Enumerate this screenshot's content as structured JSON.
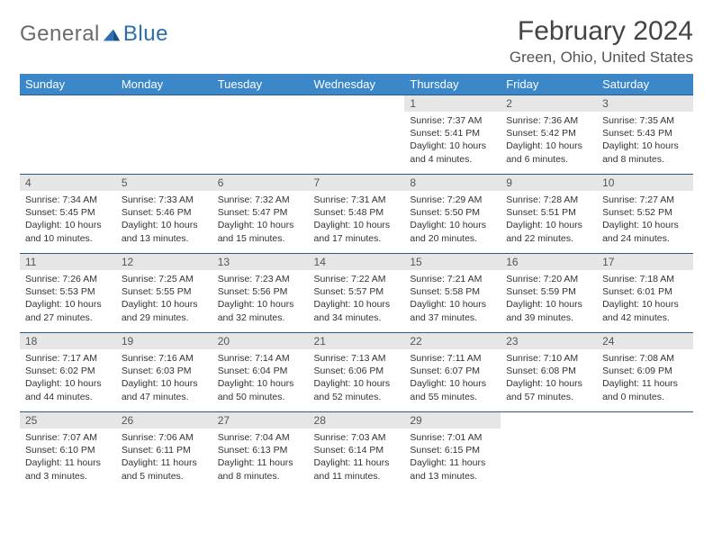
{
  "logo": {
    "general": "General",
    "blue": "Blue"
  },
  "title": "February 2024",
  "location": "Green, Ohio, United States",
  "colors": {
    "header_bg": "#3b87c8",
    "header_text": "#ffffff",
    "daynum_bg": "#e6e6e6",
    "border": "#2b5a88",
    "logo_gray": "#6b6b6b",
    "logo_blue": "#2b6fb3"
  },
  "weekdays": [
    "Sunday",
    "Monday",
    "Tuesday",
    "Wednesday",
    "Thursday",
    "Friday",
    "Saturday"
  ],
  "weeks": [
    [
      null,
      null,
      null,
      null,
      {
        "d": "1",
        "sr": "Sunrise: 7:37 AM",
        "ss": "Sunset: 5:41 PM",
        "dl": "Daylight: 10 hours and 4 minutes."
      },
      {
        "d": "2",
        "sr": "Sunrise: 7:36 AM",
        "ss": "Sunset: 5:42 PM",
        "dl": "Daylight: 10 hours and 6 minutes."
      },
      {
        "d": "3",
        "sr": "Sunrise: 7:35 AM",
        "ss": "Sunset: 5:43 PM",
        "dl": "Daylight: 10 hours and 8 minutes."
      }
    ],
    [
      {
        "d": "4",
        "sr": "Sunrise: 7:34 AM",
        "ss": "Sunset: 5:45 PM",
        "dl": "Daylight: 10 hours and 10 minutes."
      },
      {
        "d": "5",
        "sr": "Sunrise: 7:33 AM",
        "ss": "Sunset: 5:46 PM",
        "dl": "Daylight: 10 hours and 13 minutes."
      },
      {
        "d": "6",
        "sr": "Sunrise: 7:32 AM",
        "ss": "Sunset: 5:47 PM",
        "dl": "Daylight: 10 hours and 15 minutes."
      },
      {
        "d": "7",
        "sr": "Sunrise: 7:31 AM",
        "ss": "Sunset: 5:48 PM",
        "dl": "Daylight: 10 hours and 17 minutes."
      },
      {
        "d": "8",
        "sr": "Sunrise: 7:29 AM",
        "ss": "Sunset: 5:50 PM",
        "dl": "Daylight: 10 hours and 20 minutes."
      },
      {
        "d": "9",
        "sr": "Sunrise: 7:28 AM",
        "ss": "Sunset: 5:51 PM",
        "dl": "Daylight: 10 hours and 22 minutes."
      },
      {
        "d": "10",
        "sr": "Sunrise: 7:27 AM",
        "ss": "Sunset: 5:52 PM",
        "dl": "Daylight: 10 hours and 24 minutes."
      }
    ],
    [
      {
        "d": "11",
        "sr": "Sunrise: 7:26 AM",
        "ss": "Sunset: 5:53 PM",
        "dl": "Daylight: 10 hours and 27 minutes."
      },
      {
        "d": "12",
        "sr": "Sunrise: 7:25 AM",
        "ss": "Sunset: 5:55 PM",
        "dl": "Daylight: 10 hours and 29 minutes."
      },
      {
        "d": "13",
        "sr": "Sunrise: 7:23 AM",
        "ss": "Sunset: 5:56 PM",
        "dl": "Daylight: 10 hours and 32 minutes."
      },
      {
        "d": "14",
        "sr": "Sunrise: 7:22 AM",
        "ss": "Sunset: 5:57 PM",
        "dl": "Daylight: 10 hours and 34 minutes."
      },
      {
        "d": "15",
        "sr": "Sunrise: 7:21 AM",
        "ss": "Sunset: 5:58 PM",
        "dl": "Daylight: 10 hours and 37 minutes."
      },
      {
        "d": "16",
        "sr": "Sunrise: 7:20 AM",
        "ss": "Sunset: 5:59 PM",
        "dl": "Daylight: 10 hours and 39 minutes."
      },
      {
        "d": "17",
        "sr": "Sunrise: 7:18 AM",
        "ss": "Sunset: 6:01 PM",
        "dl": "Daylight: 10 hours and 42 minutes."
      }
    ],
    [
      {
        "d": "18",
        "sr": "Sunrise: 7:17 AM",
        "ss": "Sunset: 6:02 PM",
        "dl": "Daylight: 10 hours and 44 minutes."
      },
      {
        "d": "19",
        "sr": "Sunrise: 7:16 AM",
        "ss": "Sunset: 6:03 PM",
        "dl": "Daylight: 10 hours and 47 minutes."
      },
      {
        "d": "20",
        "sr": "Sunrise: 7:14 AM",
        "ss": "Sunset: 6:04 PM",
        "dl": "Daylight: 10 hours and 50 minutes."
      },
      {
        "d": "21",
        "sr": "Sunrise: 7:13 AM",
        "ss": "Sunset: 6:06 PM",
        "dl": "Daylight: 10 hours and 52 minutes."
      },
      {
        "d": "22",
        "sr": "Sunrise: 7:11 AM",
        "ss": "Sunset: 6:07 PM",
        "dl": "Daylight: 10 hours and 55 minutes."
      },
      {
        "d": "23",
        "sr": "Sunrise: 7:10 AM",
        "ss": "Sunset: 6:08 PM",
        "dl": "Daylight: 10 hours and 57 minutes."
      },
      {
        "d": "24",
        "sr": "Sunrise: 7:08 AM",
        "ss": "Sunset: 6:09 PM",
        "dl": "Daylight: 11 hours and 0 minutes."
      }
    ],
    [
      {
        "d": "25",
        "sr": "Sunrise: 7:07 AM",
        "ss": "Sunset: 6:10 PM",
        "dl": "Daylight: 11 hours and 3 minutes."
      },
      {
        "d": "26",
        "sr": "Sunrise: 7:06 AM",
        "ss": "Sunset: 6:11 PM",
        "dl": "Daylight: 11 hours and 5 minutes."
      },
      {
        "d": "27",
        "sr": "Sunrise: 7:04 AM",
        "ss": "Sunset: 6:13 PM",
        "dl": "Daylight: 11 hours and 8 minutes."
      },
      {
        "d": "28",
        "sr": "Sunrise: 7:03 AM",
        "ss": "Sunset: 6:14 PM",
        "dl": "Daylight: 11 hours and 11 minutes."
      },
      {
        "d": "29",
        "sr": "Sunrise: 7:01 AM",
        "ss": "Sunset: 6:15 PM",
        "dl": "Daylight: 11 hours and 13 minutes."
      },
      null,
      null
    ]
  ]
}
